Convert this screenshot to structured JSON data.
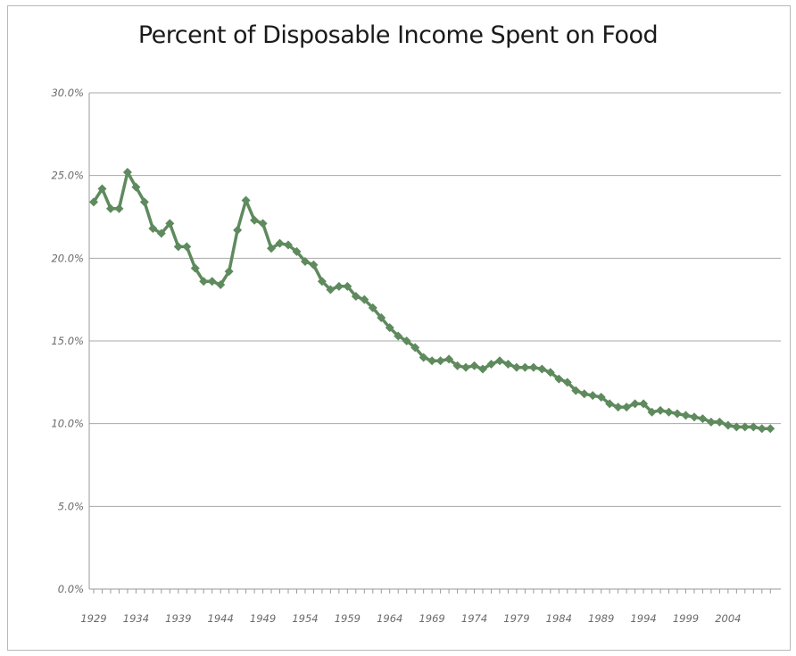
{
  "chart_data": {
    "type": "line",
    "title": "Percent of Disposable Income Spent on Food",
    "xlabel": "",
    "ylabel": "",
    "ylim": [
      0,
      30
    ],
    "yticks": [
      "0.0%",
      "5.0%",
      "10.0%",
      "15.0%",
      "20.0%",
      "25.0%",
      "30.0%"
    ],
    "ytick_values": [
      0,
      5,
      10,
      15,
      20,
      25,
      30
    ],
    "xtick_labels": [
      "1929",
      "1934",
      "1939",
      "1944",
      "1949",
      "1954",
      "1959",
      "1964",
      "1969",
      "1974",
      "1979",
      "1984",
      "1989",
      "1994",
      "1999",
      "2004"
    ],
    "grid": true,
    "legend": "none",
    "series_color": "#5e8a5e",
    "series": [
      {
        "x": [
          1929,
          1930,
          1931,
          1932,
          1933,
          1934,
          1935,
          1936,
          1937,
          1938,
          1939,
          1940,
          1941,
          1942,
          1943,
          1944,
          1945,
          1946,
          1947,
          1948,
          1949,
          1950,
          1951,
          1952,
          1953,
          1954,
          1955,
          1956,
          1957,
          1958,
          1959,
          1960,
          1961,
          1962,
          1963,
          1964,
          1965,
          1966,
          1967,
          1968,
          1969,
          1970,
          1971,
          1972,
          1973,
          1974,
          1975,
          1976,
          1977,
          1978,
          1979,
          1980,
          1981,
          1982,
          1983,
          1984,
          1985,
          1986,
          1987,
          1988,
          1989,
          1990,
          1991,
          1992,
          1993,
          1994,
          1995,
          1996,
          1997,
          1998,
          1999,
          2000,
          2001,
          2002,
          2003,
          2004,
          2005,
          2006,
          2007
        ],
        "values": [
          23.4,
          24.2,
          23.0,
          23.0,
          25.2,
          24.3,
          23.4,
          21.8,
          21.5,
          22.1,
          20.7,
          20.7,
          19.4,
          18.6,
          18.6,
          18.4,
          19.2,
          21.7,
          23.5,
          22.3,
          22.1,
          20.6,
          20.9,
          20.8,
          20.4,
          19.8,
          19.6,
          18.6,
          18.1,
          18.3,
          18.3,
          17.7,
          17.5,
          17.0,
          16.4,
          15.8,
          15.3,
          15.0,
          14.6,
          14.0,
          13.8,
          13.8,
          13.9,
          13.5,
          13.4,
          13.5,
          13.3,
          13.6,
          13.8,
          13.6,
          13.4,
          13.4,
          13.4,
          13.3,
          13.1,
          12.7,
          12.5,
          12.0,
          11.8,
          11.7,
          11.6,
          11.2,
          11.0,
          11.0,
          11.2,
          11.2,
          10.7,
          10.8,
          10.7,
          10.6,
          10.5,
          10.4,
          10.3,
          10.1,
          10.1,
          9.9,
          9.8,
          9.8,
          9.8
        ]
      }
    ],
    "x_extra": [
      2008,
      2009
    ],
    "x_extra_values": [
      9.7,
      9.7
    ]
  }
}
